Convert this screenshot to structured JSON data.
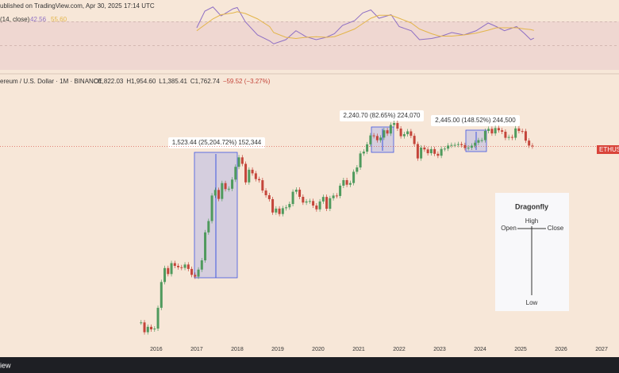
{
  "chart_data": {
    "type": "candlestick",
    "header": "ublished on TradingView.com, Apr 30, 2025 17:14 UTC",
    "symbol": "ereum / U.S. Dollar · 1M · BINANCE",
    "ohlc": [
      "O1,822.03",
      "H1,954.60",
      "L1,385.41",
      "C1,762.74",
      "−59.52 (−3.27%)"
    ],
    "price_tag": "ETHUSD",
    "footer": "iew",
    "log_scale": true,
    "up_color": "#4f9a5d",
    "down_color": "#c4453a",
    "xlim": [
      2012.14,
      2027.43
    ],
    "xticks": [
      2016,
      2017,
      2018,
      2019,
      2020,
      2021,
      2022,
      2023,
      2024,
      2025,
      2026,
      2027
    ],
    "ylim": [
      0.55,
      24000
    ],
    "x": [
      "2015-08",
      "2015-09",
      "2015-10",
      "2015-11",
      "2015-12",
      "2016-01",
      "2016-02",
      "2016-03",
      "2016-04",
      "2016-05",
      "2016-06",
      "2016-07",
      "2016-08",
      "2016-09",
      "2016-10",
      "2016-11",
      "2016-12",
      "2017-01",
      "2017-02",
      "2017-03",
      "2017-04",
      "2017-05",
      "2017-06",
      "2017-07",
      "2017-08",
      "2017-09",
      "2017-10",
      "2017-11",
      "2017-12",
      "2018-01",
      "2018-02",
      "2018-03",
      "2018-04",
      "2018-05",
      "2018-06",
      "2018-07",
      "2018-08",
      "2018-09",
      "2018-10",
      "2018-11",
      "2018-12",
      "2019-01",
      "2019-02",
      "2019-03",
      "2019-04",
      "2019-05",
      "2019-06",
      "2019-07",
      "2019-08",
      "2019-09",
      "2019-10",
      "2019-11",
      "2019-12",
      "2020-01",
      "2020-02",
      "2020-03",
      "2020-04",
      "2020-05",
      "2020-06",
      "2020-07",
      "2020-08",
      "2020-09",
      "2020-10",
      "2020-11",
      "2020-12",
      "2021-01",
      "2021-02",
      "2021-03",
      "2021-04",
      "2021-05",
      "2021-06",
      "2021-07",
      "2021-08",
      "2021-09",
      "2021-10",
      "2021-11",
      "2021-12",
      "2022-01",
      "2022-02",
      "2022-03",
      "2022-04",
      "2022-05",
      "2022-06",
      "2022-07",
      "2022-08",
      "2022-09",
      "2022-10",
      "2022-11",
      "2022-12",
      "2023-01",
      "2023-02",
      "2023-03",
      "2023-04",
      "2023-05",
      "2023-06",
      "2023-07",
      "2023-08",
      "2023-09",
      "2023-10",
      "2023-11",
      "2023-12",
      "2024-01",
      "2024-02",
      "2024-03",
      "2024-04",
      "2024-05",
      "2024-06",
      "2024-07",
      "2024-08",
      "2024-09",
      "2024-10",
      "2024-11",
      "2024-12",
      "2025-01",
      "2025-02",
      "2025-03",
      "2025-04"
    ],
    "close": [
      1.2,
      0.8,
      1.0,
      0.9,
      0.93,
      2.2,
      6.4,
      11.4,
      8.9,
      14,
      12.5,
      11.8,
      11.5,
      13.2,
      11,
      8.6,
      8.0,
      10.7,
      15.7,
      50,
      80,
      230,
      290,
      200,
      385,
      300,
      305,
      445,
      755,
      1118,
      855,
      397,
      670,
      577,
      455,
      434,
      283,
      233,
      198,
      114,
      134,
      107,
      136,
      141,
      162,
      269,
      293,
      218,
      172,
      180,
      183,
      152,
      130,
      180,
      217,
      133,
      206,
      230,
      226,
      346,
      435,
      360,
      386,
      615,
      737,
      1314,
      1416,
      1918,
      2773,
      2707,
      2275,
      2536,
      3433,
      3001,
      4288,
      4631,
      3683,
      2688,
      2919,
      3282,
      2730,
      1942,
      1070,
      1679,
      1553,
      1328,
      1573,
      1296,
      1196,
      1585,
      1605,
      1822,
      1869,
      1874,
      1934,
      1857,
      1645,
      1671,
      1814,
      2052,
      2282,
      2283,
      3340,
      3647,
      3014,
      3762,
      3433,
      3232,
      2513,
      2602,
      2518,
      3705,
      3332,
      3300,
      2237,
      1822,
      1762.74
    ],
    "measures": [
      "1,523.44 (25,204.72%) 152,344",
      "2,240.70 (82.65%) 224,070",
      "2,445.00 (148.52%) 244,500"
    ],
    "rsi": {
      "label": "(14, close)",
      "ylim": [
        0,
        100
      ],
      "band": [
        30,
        70
      ],
      "x": [
        2017.0,
        2017.2,
        2017.4,
        2017.6,
        2017.9,
        2018.0,
        2018.2,
        2018.5,
        2018.8,
        2018.9,
        2019.2,
        2019.45,
        2019.7,
        2019.95,
        2020.2,
        2020.4,
        2020.6,
        2020.9,
        2021.1,
        2021.3,
        2021.5,
        2021.8,
        2022.0,
        2022.3,
        2022.5,
        2022.8,
        2023.0,
        2023.3,
        2023.6,
        2023.9,
        2024.2,
        2024.4,
        2024.6,
        2024.9,
        2025.1,
        2025.25,
        2025.33
      ],
      "series": [
        {
          "name": "42.56",
          "color": "#8e6fc4",
          "values": [
            60,
            88,
            95,
            80,
            92,
            94,
            70,
            48,
            38,
            33,
            40,
            55,
            45,
            40,
            44,
            50,
            64,
            72,
            85,
            90,
            76,
            82,
            62,
            55,
            40,
            42,
            45,
            52,
            48,
            55,
            68,
            62,
            55,
            62,
            50,
            40,
            42.56
          ]
        },
        {
          "name": "55.60",
          "color": "#e3b54a",
          "values": [
            55,
            65,
            75,
            82,
            85,
            87,
            84,
            75,
            62,
            52,
            44,
            42,
            44,
            45,
            44,
            45,
            50,
            58,
            67,
            76,
            81,
            81,
            76,
            68,
            58,
            50,
            46,
            46,
            48,
            51,
            56,
            60,
            60,
            60,
            58,
            57,
            55.6
          ]
        }
      ]
    },
    "inset": {
      "title": "Dragonfly",
      "high": "High",
      "open": "Open",
      "close": "Close",
      "low": "Low"
    }
  }
}
